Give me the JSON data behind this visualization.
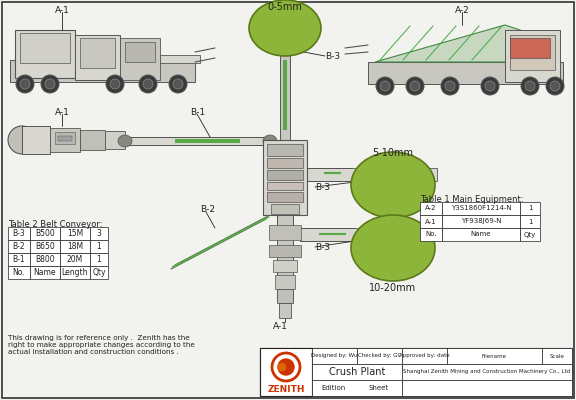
{
  "title": "Crush Plant",
  "bg_color": "#f2f2ee",
  "green_color": "#8db53a",
  "green_dark": "#5a7a1a",
  "machine_fill": "#d8d8d0",
  "machine_edge": "#555555",
  "black": "#222222",
  "white": "#ffffff",
  "red_logo": "#cc3300",
  "orange_logo": "#dd6600",
  "table2_title": "Table 2 Belt Conveyor:",
  "table2_headers": [
    "No.",
    "Name",
    "Length",
    "Qty"
  ],
  "table2_rows": [
    [
      "B-3",
      "B500",
      "15M",
      "3"
    ],
    [
      "B-2",
      "B650",
      "18M",
      "1"
    ],
    [
      "B-1",
      "B800",
      "20M",
      "1"
    ]
  ],
  "table1_title": "Table 1 Main Equipment:",
  "table1_headers": [
    "No.",
    "Name",
    "Qty"
  ],
  "table1_rows": [
    [
      "A-2",
      "Y3S1860F1214-N",
      "1"
    ],
    [
      "A-1",
      "YF938J69-N",
      "1"
    ]
  ],
  "disclaimer": "This drawing is for reference only .  Zenith has the\nright to make appropriate changes according to the\nactual installation and construction conditions .",
  "company": "Shanghai Zenith Mining and Construction Machinery Co., Ltd",
  "zenith_text": "ZENITH",
  "designed_by": "Designed by: Wu",
  "checked_by": "Checked by: GC",
  "approved_by": "Approved by: date",
  "filename_lbl": "Filename",
  "scale_lbl": "Scale",
  "edition_lbl": "Edition",
  "sheet_lbl": "Sheet"
}
